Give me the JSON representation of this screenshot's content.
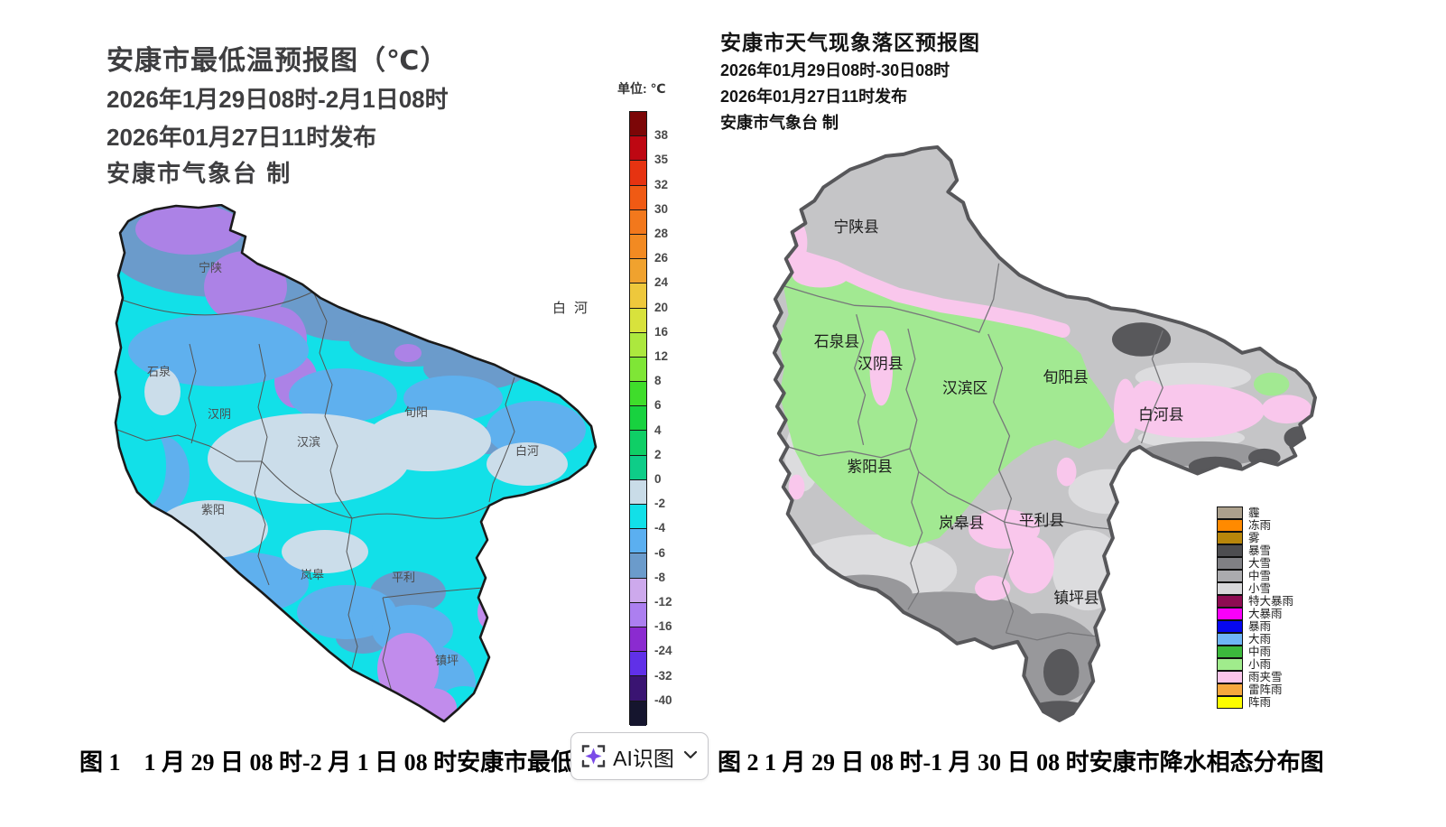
{
  "left_panel": {
    "title": "安康市最低温预报图（℃）",
    "date_range": "2026年1月29日08时-2月1日08时",
    "issued": "2026年01月27日11时发布",
    "producer": "安康市气象台 制",
    "colorbar": {
      "unit": "单位: ℃",
      "ticks": [
        "38",
        "35",
        "32",
        "30",
        "28",
        "26",
        "24",
        "20",
        "16",
        "12",
        "8",
        "6",
        "4",
        "2",
        "0",
        "-2",
        "-4",
        "-6",
        "-8",
        "-12",
        "-16",
        "-24",
        "-32",
        "-40"
      ],
      "colors": [
        "#7c0607",
        "#be0712",
        "#e63311",
        "#f05a14",
        "#f2781c",
        "#f28a22",
        "#f0a22e",
        "#eec83c",
        "#d8e23c",
        "#ace83e",
        "#7fe636",
        "#3fdd2b",
        "#18d23f",
        "#0fcf66",
        "#0ecd88",
        "#c9dce8",
        "#12e0e8",
        "#5baff0",
        "#6b9bcb",
        "#cda9ec",
        "#ac7ff0",
        "#8b2bd0",
        "#6030e8",
        "#3a1472",
        "#15152e"
      ]
    },
    "labels": [
      "宁陕",
      "石泉",
      "汉阴",
      "汉滨",
      "旬阳",
      "白河",
      "紫阳",
      "岚皋",
      "平利",
      "镇坪"
    ],
    "stray_label": "白河",
    "caption": "图 1　1 月 29 日 08 时-2 月 1 日 08 时安康市最低"
  },
  "right_panel": {
    "title": "安康市天气现象落区预报图",
    "date_range": "2026年01月29日08时-30日08时",
    "issued": "2026年01月27日11时发布",
    "producer": "安康市气象台 制",
    "legend": [
      {
        "label": "霾",
        "color": "#aca08c"
      },
      {
        "label": "冻雨",
        "color": "#ff8a00"
      },
      {
        "label": "雾",
        "color": "#b8860b"
      },
      {
        "label": "暴雪",
        "color": "#4d4d50"
      },
      {
        "label": "大雪",
        "color": "#808084"
      },
      {
        "label": "中雪",
        "color": "#ababae"
      },
      {
        "label": "小雪",
        "color": "#d8d8da"
      },
      {
        "label": "特大暴雨",
        "color": "#8e0c52"
      },
      {
        "label": "大暴雨",
        "color": "#fa00fa"
      },
      {
        "label": "暴雨",
        "color": "#0608ee"
      },
      {
        "label": "大雨",
        "color": "#6fb5f5"
      },
      {
        "label": "中雨",
        "color": "#3cb93c"
      },
      {
        "label": "小雨",
        "color": "#a0ec8c"
      },
      {
        "label": "雨夹雪",
        "color": "#fbc4ea"
      },
      {
        "label": "雷阵雨",
        "color": "#f6a83e"
      },
      {
        "label": "阵雨",
        "color": "#fdfd00"
      }
    ],
    "labels": [
      "宁陕县",
      "石泉县",
      "汉阴县",
      "汉滨区",
      "旬阳县",
      "白河县",
      "紫阳县",
      "岚皋县",
      "平利县",
      "镇坪县"
    ],
    "caption": "图 2 1 月 29 日 08 时-1 月 30 日 08 时安康市降水相态分布图"
  },
  "ai_button": {
    "label": "AI识图",
    "icon": "ai-scan-sparkle-icon",
    "accent": "#7b4be8"
  },
  "chart_data": [
    {
      "type": "map",
      "title": "安康市最低温预报图（℃）",
      "unit": "℃",
      "valid_period": "2026年1月29日08时-2月1日08时",
      "issued": "2026年01月27日11时发布",
      "source": "安康市气象台",
      "scale_ticks": [
        38,
        35,
        32,
        30,
        28,
        26,
        24,
        20,
        16,
        12,
        8,
        6,
        4,
        2,
        0,
        -2,
        -4,
        -6,
        -8,
        -12,
        -16,
        -24,
        -32,
        -40
      ],
      "regions": [
        "宁陕",
        "石泉",
        "汉阴",
        "汉滨",
        "旬阳",
        "白河",
        "紫阳",
        "岚皋",
        "平利",
        "镇坪"
      ],
      "dominant_values": {
        "宁陕": "-16~-6",
        "石泉": "-4~0",
        "汉阴": "-2~0",
        "汉滨": "-2~0",
        "旬阳": "-2~0",
        "白河": "-4~0",
        "紫阳": "-2~0",
        "岚皋": "-6~-2",
        "平利": "-6~-2",
        "镇坪": "-12~-4"
      }
    },
    {
      "type": "map",
      "title": "安康市天气现象落区预报图",
      "valid_period": "2026年01月29日08时-30日08时",
      "issued": "2026年01月27日11时发布",
      "source": "安康市气象台",
      "legend": [
        "霾",
        "冻雨",
        "雾",
        "暴雪",
        "大雪",
        "中雪",
        "小雪",
        "特大暴雨",
        "大暴雨",
        "暴雨",
        "大雨",
        "中雨",
        "小雨",
        "雨夹雪",
        "雷阵雨",
        "阵雨"
      ],
      "region_phenomena": {
        "宁陕县": "中雪",
        "石泉县": "小雨/雨夹雪",
        "汉阴县": "小雨",
        "汉滨区": "小雨",
        "旬阳县": "小雨/中雪",
        "白河县": "雨夹雪/大雪",
        "紫阳县": "小雨/小雪",
        "岚皋县": "小雨/大雪",
        "平利县": "中雪/大雪",
        "镇坪县": "大雪/暴雪"
      }
    }
  ]
}
